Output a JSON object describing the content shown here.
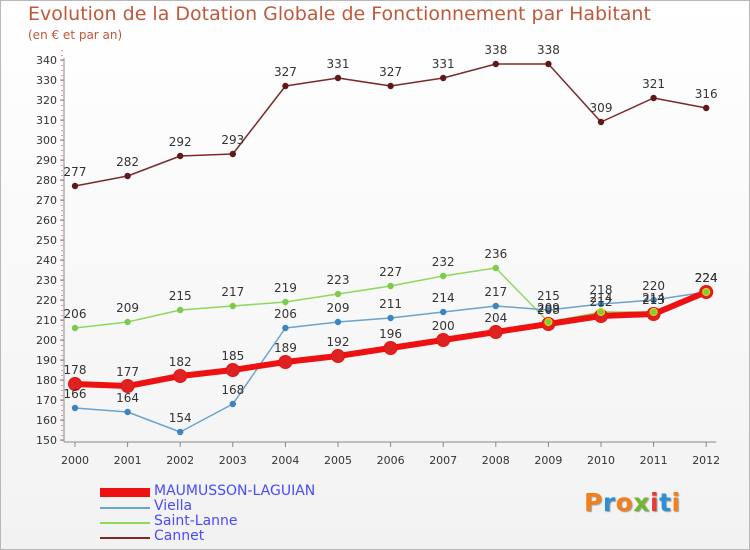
{
  "header": {
    "title": "Evolution de la Dotation Globale de Fonctionnement par Habitant",
    "subtitle": "(en € et par an)"
  },
  "logo": {
    "text": "Proxiti",
    "colors": [
      "#f07f1c",
      "#2e8fd8",
      "#f07f1c",
      "#73b72f",
      "#e53935",
      "#2e8fd8",
      "#f07f1c"
    ]
  },
  "chart_data": {
    "type": "line",
    "title": "Evolution de la Dotation Globale de Fonctionnement par Habitant",
    "subtitle": "(en € et par an)",
    "xlabel": "",
    "ylabel": "",
    "ylim": [
      150,
      340
    ],
    "ytick_step": 10,
    "grid": false,
    "legend_position": "bottom-left",
    "x": [
      "2000",
      "2001",
      "2002",
      "2003",
      "2004",
      "2005",
      "2006",
      "2007",
      "2008",
      "2009",
      "2010",
      "2011",
      "2012"
    ],
    "series": [
      {
        "name": "MAUMUSSON-LAGUIAN",
        "color": "#ee1111",
        "point_color": "#dd2222",
        "width": 6,
        "values": [
          178,
          177,
          182,
          185,
          189,
          192,
          196,
          200,
          204,
          208,
          212,
          213,
          224
        ],
        "labels": [
          "178",
          "177",
          "182",
          "185",
          "189",
          "192",
          "196",
          "200",
          "204",
          "208",
          "212",
          "213",
          "224"
        ]
      },
      {
        "name": "Viella",
        "color": "#6aa3cf",
        "point_color": "#3c85c0",
        "width": 1.5,
        "values": [
          166,
          164,
          154,
          168,
          206,
          209,
          211,
          214,
          217,
          215,
          218,
          220,
          224
        ],
        "labels": [
          "166",
          "164",
          "154",
          "168",
          "206",
          "209",
          "211",
          "214",
          "217",
          "215",
          "218",
          "220",
          "224"
        ]
      },
      {
        "name": "Saint-Lanne",
        "color": "#8fd860",
        "point_color": "#7ccb4a",
        "width": 1.5,
        "values": [
          206,
          209,
          215,
          217,
          219,
          223,
          227,
          232,
          236,
          209,
          214,
          214,
          224
        ],
        "labels": [
          "206",
          "209",
          "215",
          "217",
          "219",
          "223",
          "227",
          "232",
          "236",
          "209",
          "214",
          "214",
          "224"
        ]
      },
      {
        "name": "Cannet",
        "color": "#7a2a2a",
        "point_color": "#5e1a1a",
        "width": 1.5,
        "values": [
          277,
          282,
          292,
          293,
          327,
          331,
          327,
          331,
          338,
          338,
          309,
          321,
          316
        ],
        "labels": [
          "277",
          "282",
          "292",
          "293",
          "327",
          "331",
          "327",
          "331",
          "338",
          "338",
          "309",
          "321",
          "316"
        ]
      }
    ]
  }
}
